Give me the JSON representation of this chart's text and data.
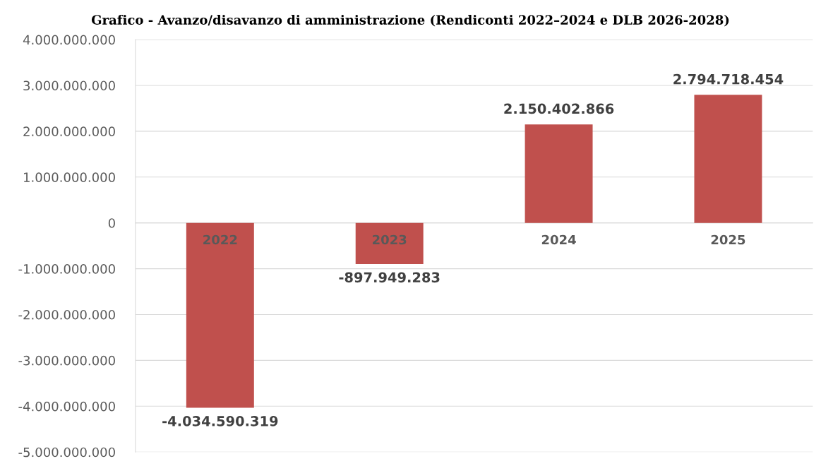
{
  "chart_data": {
    "type": "bar",
    "title": "Grafico - Avanzo/disavanzo di amministrazione (Rendiconti 2022–2024 e DLB 2026-2028)",
    "categories": [
      "2022",
      "2023",
      "2024",
      "2025"
    ],
    "values": [
      -4034590319,
      -897949283,
      2150402866,
      2794718454
    ],
    "value_labels": [
      "-4.034.590.319",
      "-897.949.283",
      "2.150.402.866",
      "2.794.718.454"
    ],
    "color": "#c0504d",
    "ylim": [
      -5000000000,
      4000000000
    ],
    "yticks": [
      {
        "value": 4000000000,
        "label": "4.000.000.000"
      },
      {
        "value": 3000000000,
        "label": "3.000.000.000"
      },
      {
        "value": 2000000000,
        "label": "2.000.000.000"
      },
      {
        "value": 1000000000,
        "label": "1.000.000.000"
      },
      {
        "value": 0,
        "label": "0"
      },
      {
        "value": -1000000000,
        "label": "-1.000.000.000"
      },
      {
        "value": -2000000000,
        "label": "-2.000.000.000"
      },
      {
        "value": -3000000000,
        "label": "-3.000.000.000"
      },
      {
        "value": -4000000000,
        "label": "-4.000.000.000"
      },
      {
        "value": -5000000000,
        "label": "-5.000.000.000"
      }
    ],
    "grid": "y"
  }
}
